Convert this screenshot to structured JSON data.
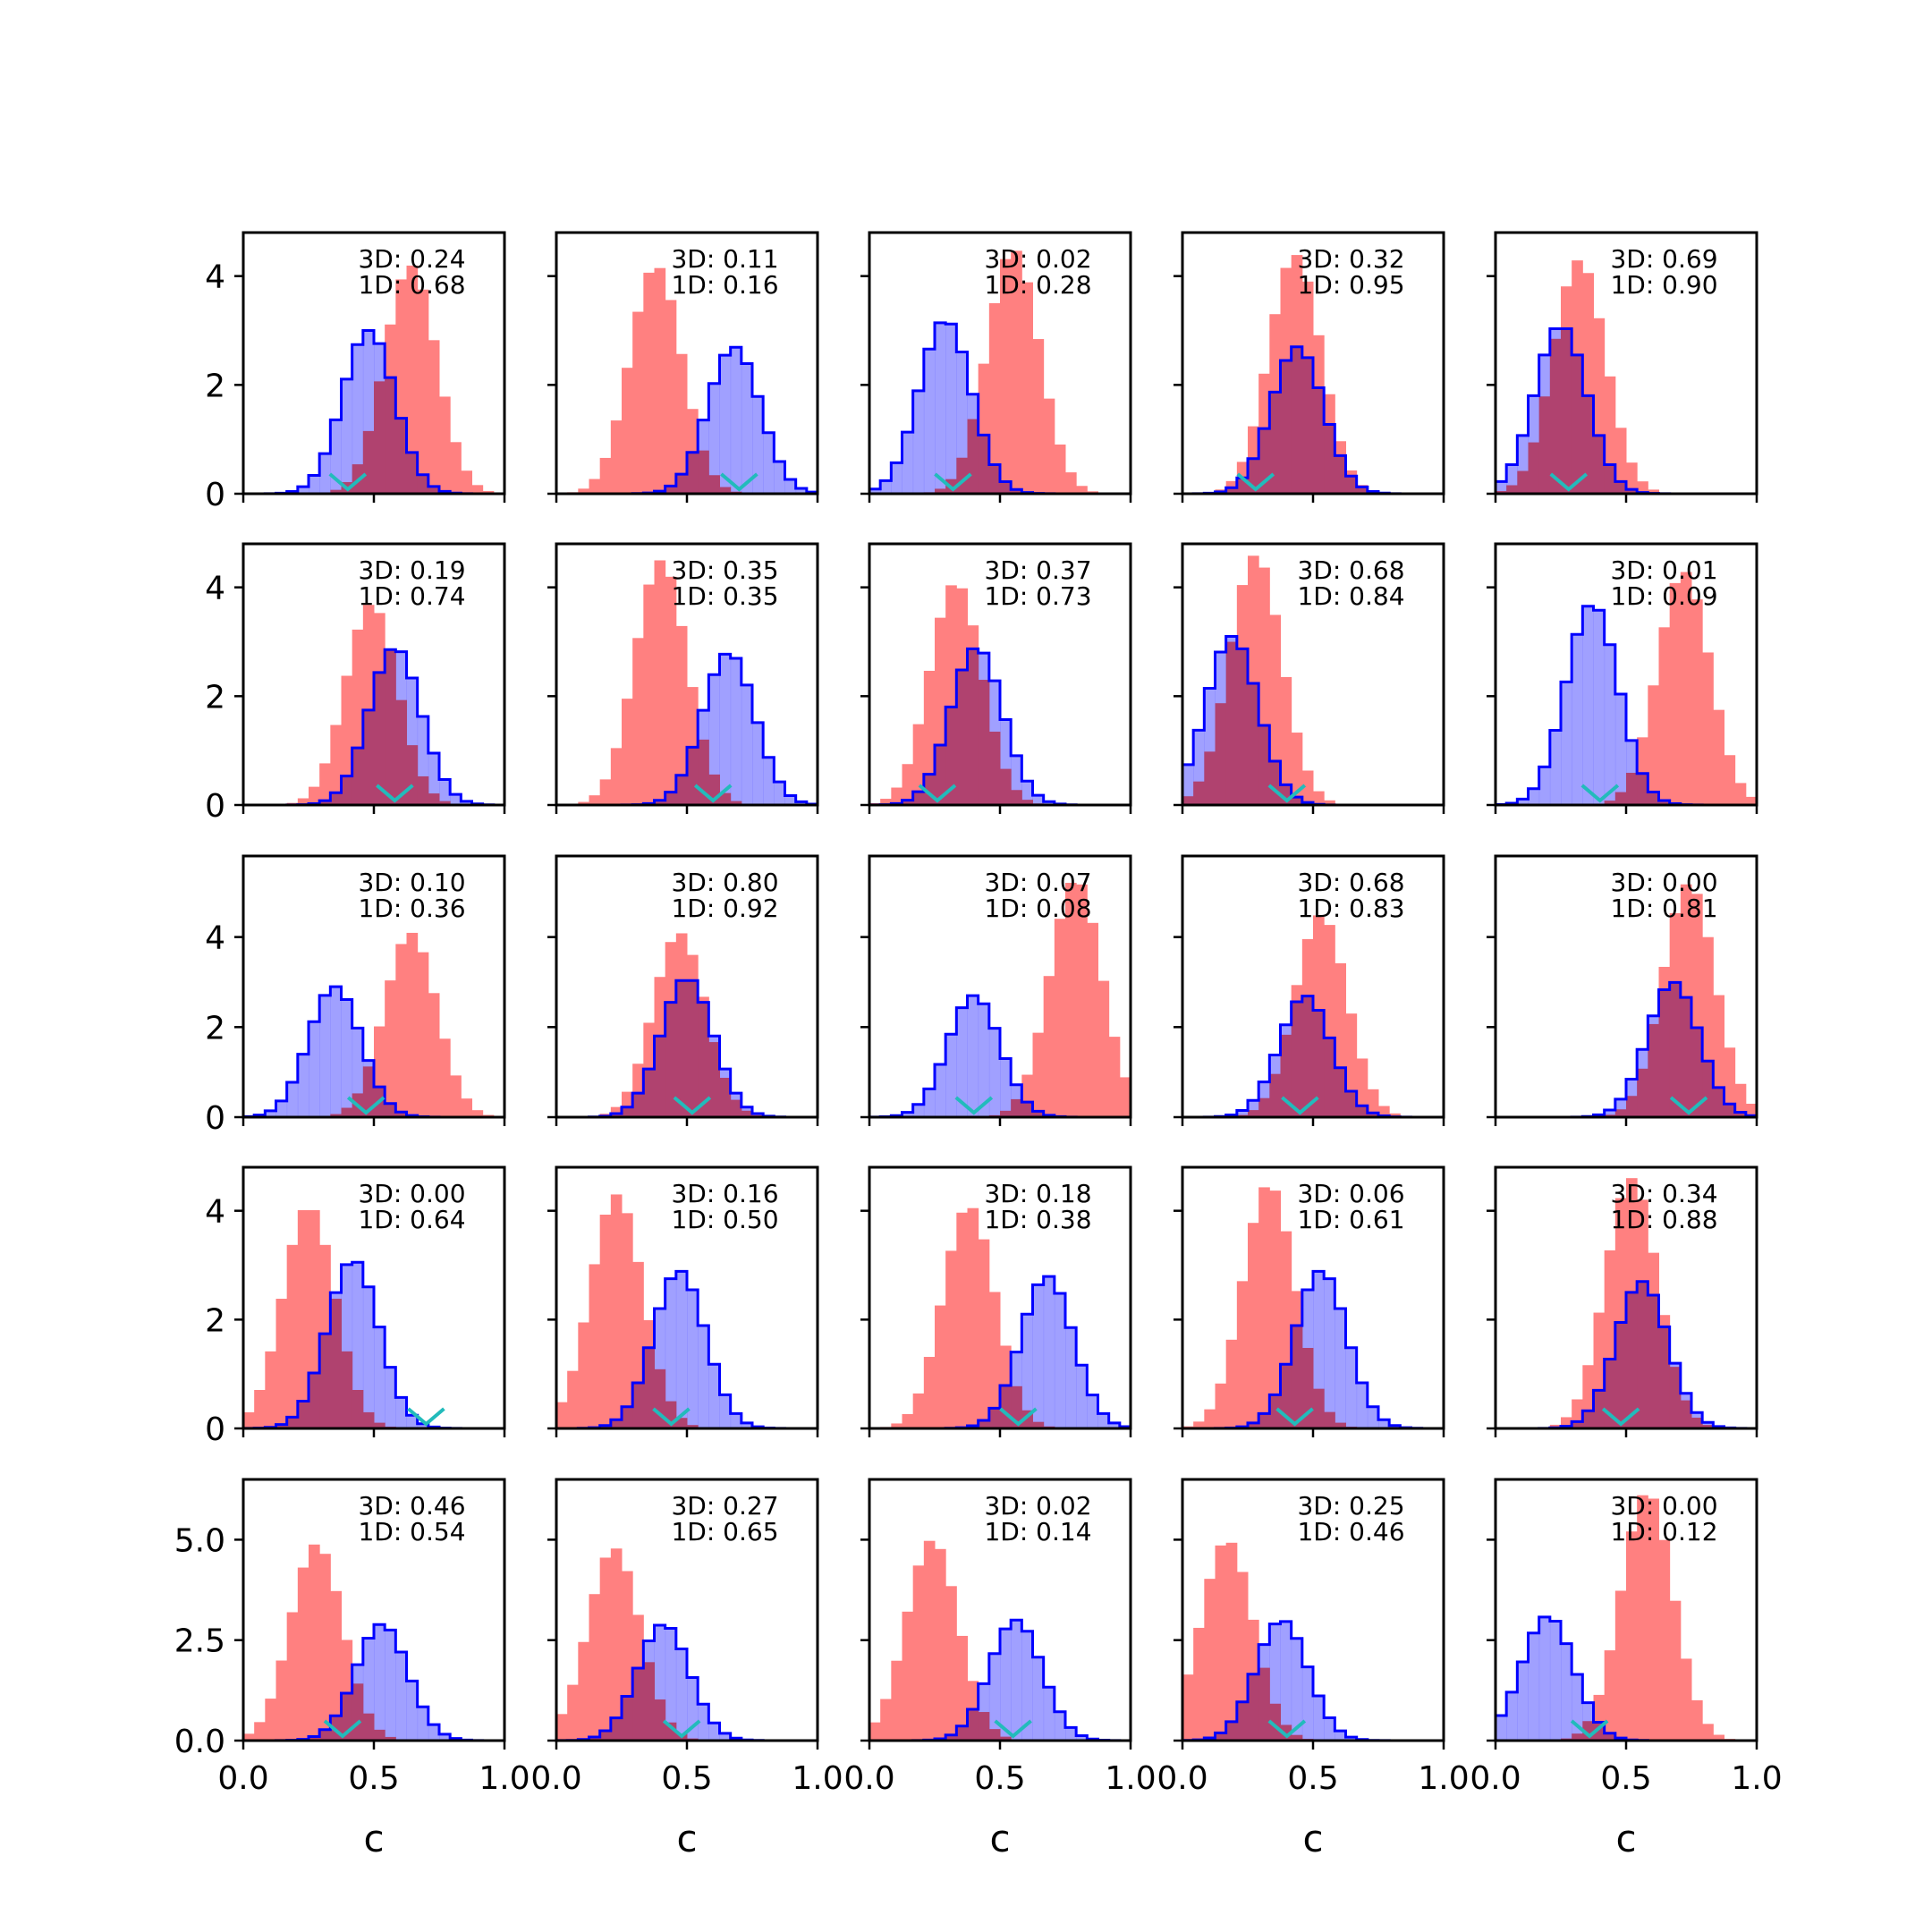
{
  "chart_data": {
    "type": "histogram-grid",
    "rows": 5,
    "cols": 5,
    "xlabel": "c",
    "xlim": [
      0,
      1
    ],
    "xticks": [
      0.0,
      0.5,
      1.0
    ],
    "xtick_labels": [
      "0.0",
      "0.5",
      "1.0"
    ],
    "row_ylim": [
      [
        0,
        4.8
      ],
      [
        0,
        4.8
      ],
      [
        0,
        5.8
      ],
      [
        0,
        4.8
      ],
      [
        0,
        6.5
      ]
    ],
    "row_yticks": [
      [
        0,
        2,
        4
      ],
      [
        0,
        2,
        4
      ],
      [
        0,
        2,
        4
      ],
      [
        0,
        2,
        4
      ],
      [
        0,
        2.5,
        5.0
      ]
    ],
    "row_ytick_labels": [
      [
        "0",
        "2",
        "4"
      ],
      [
        "0",
        "2",
        "4"
      ],
      [
        "0",
        "2",
        "4"
      ],
      [
        "0",
        "2",
        "4"
      ],
      [
        "0.0",
        "2.5",
        "5.0"
      ]
    ],
    "colors": {
      "red_fill": "#ff8080",
      "blue_fill": "#8080ff",
      "blue_edge": "#0000ff",
      "overlap": "#b0426f",
      "marker": "#22bbbb"
    },
    "panels": [
      {
        "label_3d": "3D: 0.24",
        "label_1d": "1D: 0.68",
        "red": {
          "mu": 0.64,
          "peak": 4.2
        },
        "blue": {
          "mu": 0.48,
          "peak": 3.0
        },
        "marker": 0.4
      },
      {
        "label_3d": "3D: 0.11",
        "label_1d": "1D: 0.16",
        "red": {
          "mu": 0.38,
          "peak": 4.2
        },
        "blue": {
          "mu": 0.68,
          "peak": 2.7
        },
        "marker": 0.7
      },
      {
        "label_3d": "3D: 0.02",
        "label_1d": "1D: 0.28",
        "red": {
          "mu": 0.55,
          "peak": 4.5
        },
        "blue": {
          "mu": 0.29,
          "peak": 3.2
        },
        "marker": 0.32
      },
      {
        "label_3d": "3D: 0.32",
        "label_1d": "1D: 0.95",
        "red": {
          "mu": 0.43,
          "peak": 4.4
        },
        "blue": {
          "mu": 0.44,
          "peak": 2.7
        },
        "marker": 0.28
      },
      {
        "label_3d": "3D: 0.69",
        "label_1d": "1D: 0.90",
        "red": {
          "mu": 0.32,
          "peak": 4.3
        },
        "blue": {
          "mu": 0.25,
          "peak": 3.1
        },
        "marker": 0.28
      },
      {
        "label_3d": "3D: 0.19",
        "label_1d": "1D: 0.74",
        "red": {
          "mu": 0.49,
          "peak": 3.7
        },
        "blue": {
          "mu": 0.58,
          "peak": 2.9
        },
        "marker": 0.58
      },
      {
        "label_3d": "3D: 0.35",
        "label_1d": "1D: 0.35",
        "red": {
          "mu": 0.4,
          "peak": 4.5
        },
        "blue": {
          "mu": 0.66,
          "peak": 2.8
        },
        "marker": 0.6
      },
      {
        "label_3d": "3D: 0.37",
        "label_1d": "1D: 0.73",
        "red": {
          "mu": 0.33,
          "peak": 4.1
        },
        "blue": {
          "mu": 0.41,
          "peak": 2.9
        },
        "marker": 0.26
      },
      {
        "label_3d": "3D: 0.68",
        "label_1d": "1D: 0.84",
        "red": {
          "mu": 0.28,
          "peak": 4.6
        },
        "blue": {
          "mu": 0.19,
          "peak": 3.1
        },
        "marker": 0.4
      },
      {
        "label_3d": "3D: 0.01",
        "label_1d": "1D: 0.09",
        "red": {
          "mu": 0.72,
          "peak": 4.3
        },
        "blue": {
          "mu": 0.37,
          "peak": 3.7
        },
        "marker": 0.4
      },
      {
        "label_3d": "3D: 0.10",
        "label_1d": "1D: 0.36",
        "red": {
          "mu": 0.64,
          "peak": 4.1
        },
        "blue": {
          "mu": 0.35,
          "peak": 2.9
        },
        "marker": 0.47
      },
      {
        "label_3d": "3D: 0.80",
        "label_1d": "1D: 0.92",
        "red": {
          "mu": 0.47,
          "peak": 4.1
        },
        "blue": {
          "mu": 0.5,
          "peak": 3.1
        },
        "marker": 0.52
      },
      {
        "label_3d": "3D: 0.07",
        "label_1d": "1D: 0.08",
        "red": {
          "mu": 0.79,
          "peak": 5.3
        },
        "blue": {
          "mu": 0.4,
          "peak": 2.7
        },
        "marker": 0.4
      },
      {
        "label_3d": "3D: 0.68",
        "label_1d": "1D: 0.83",
        "red": {
          "mu": 0.53,
          "peak": 4.5
        },
        "blue": {
          "mu": 0.47,
          "peak": 2.7
        },
        "marker": 0.45
      },
      {
        "label_3d": "3D: 0.00",
        "label_1d": "1D: 0.81",
        "red": {
          "mu": 0.74,
          "peak": 5.2
        },
        "blue": {
          "mu": 0.68,
          "peak": 3.0
        },
        "marker": 0.74
      },
      {
        "label_3d": "3D: 0.00",
        "label_1d": "1D: 0.64",
        "red": {
          "mu": 0.25,
          "peak": 4.1
        },
        "blue": {
          "mu": 0.42,
          "peak": 3.1
        },
        "marker": 0.7
      },
      {
        "label_3d": "3D: 0.16",
        "label_1d": "1D: 0.50",
        "red": {
          "mu": 0.23,
          "peak": 4.3
        },
        "blue": {
          "mu": 0.47,
          "peak": 2.9
        },
        "marker": 0.44
      },
      {
        "label_3d": "3D: 0.18",
        "label_1d": "1D: 0.38",
        "red": {
          "mu": 0.38,
          "peak": 4.1
        },
        "blue": {
          "mu": 0.68,
          "peak": 2.8
        },
        "marker": 0.57
      },
      {
        "label_3d": "3D: 0.06",
        "label_1d": "1D: 0.61",
        "red": {
          "mu": 0.33,
          "peak": 4.5
        },
        "blue": {
          "mu": 0.53,
          "peak": 2.9
        },
        "marker": 0.43
      },
      {
        "label_3d": "3D: 0.34",
        "label_1d": "1D: 0.88",
        "red": {
          "mu": 0.52,
          "peak": 4.6
        },
        "blue": {
          "mu": 0.56,
          "peak": 2.7
        },
        "marker": 0.48
      },
      {
        "label_3d": "3D: 0.46",
        "label_1d": "1D: 0.54",
        "red": {
          "mu": 0.28,
          "peak": 4.9
        },
        "blue": {
          "mu": 0.53,
          "peak": 2.9
        },
        "marker": 0.38
      },
      {
        "label_3d": "3D: 0.27",
        "label_1d": "1D: 0.65",
        "red": {
          "mu": 0.22,
          "peak": 4.8
        },
        "blue": {
          "mu": 0.41,
          "peak": 2.9
        },
        "marker": 0.48
      },
      {
        "label_3d": "3D: 0.02",
        "label_1d": "1D: 0.14",
        "red": {
          "mu": 0.24,
          "peak": 5.0
        },
        "blue": {
          "mu": 0.56,
          "peak": 3.0
        },
        "marker": 0.55
      },
      {
        "label_3d": "3D: 0.25",
        "label_1d": "1D: 0.46",
        "red": {
          "mu": 0.17,
          "peak": 5.0
        },
        "blue": {
          "mu": 0.38,
          "peak": 3.0
        },
        "marker": 0.4
      },
      {
        "label_3d": "3D: 0.00",
        "label_1d": "1D: 0.12",
        "red": {
          "mu": 0.58,
          "peak": 6.2
        },
        "blue": {
          "mu": 0.2,
          "peak": 3.1
        },
        "marker": 0.36
      }
    ]
  }
}
